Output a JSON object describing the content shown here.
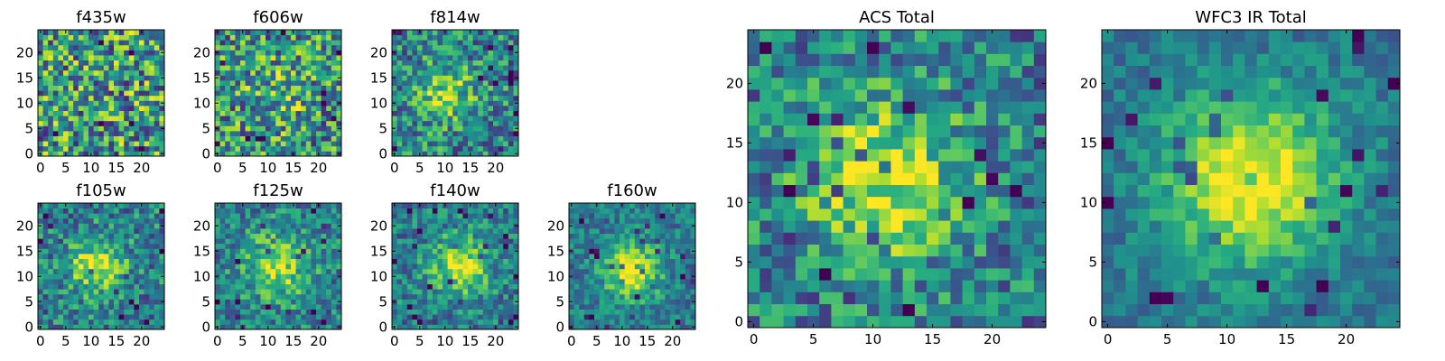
{
  "chart_data": [
    {
      "type": "heatmap",
      "title": "f435w",
      "x_ticks": [
        "0",
        "5",
        "10",
        "15",
        "20"
      ],
      "y_ticks": [
        "0",
        "5",
        "10",
        "15",
        "20"
      ],
      "xlim": [
        -0.5,
        24.5
      ],
      "ylim": [
        -0.5,
        24.5
      ],
      "grid_size": 25,
      "peak": "none (noise)",
      "colormap": "viridis"
    },
    {
      "type": "heatmap",
      "title": "f606w",
      "x_ticks": [
        "0",
        "5",
        "10",
        "15",
        "20"
      ],
      "y_ticks": [
        "0",
        "5",
        "10",
        "15",
        "20"
      ],
      "xlim": [
        -0.5,
        24.5
      ],
      "ylim": [
        -0.5,
        24.5
      ],
      "grid_size": 25,
      "peak": "weak center",
      "colormap": "viridis"
    },
    {
      "type": "heatmap",
      "title": "f814w",
      "x_ticks": [
        "0",
        "5",
        "10",
        "15",
        "20"
      ],
      "y_ticks": [
        "0",
        "5",
        "10",
        "15",
        "20"
      ],
      "xlim": [
        -0.5,
        24.5
      ],
      "ylim": [
        -0.5,
        24.5
      ],
      "grid_size": 25,
      "peak": "center ~ (10,12)",
      "colormap": "viridis"
    },
    {
      "type": "heatmap",
      "title": "f105w",
      "x_ticks": [
        "0",
        "5",
        "10",
        "15",
        "20"
      ],
      "y_ticks": [
        "0",
        "5",
        "10",
        "15",
        "20"
      ],
      "xlim": [
        -0.5,
        24.5
      ],
      "ylim": [
        -0.5,
        24.5
      ],
      "grid_size": 25,
      "peak": "center ~ (11,12)",
      "colormap": "viridis"
    },
    {
      "type": "heatmap",
      "title": "f125w",
      "x_ticks": [
        "0",
        "5",
        "10",
        "15",
        "20"
      ],
      "y_ticks": [
        "0",
        "5",
        "10",
        "15",
        "20"
      ],
      "xlim": [
        -0.5,
        24.5
      ],
      "ylim": [
        -0.5,
        24.5
      ],
      "grid_size": 25,
      "peak": "center ~ (12,12)",
      "colormap": "viridis"
    },
    {
      "type": "heatmap",
      "title": "f140w",
      "x_ticks": [
        "0",
        "5",
        "10",
        "15",
        "20"
      ],
      "y_ticks": [
        "0",
        "5",
        "10",
        "15",
        "20"
      ],
      "xlim": [
        -0.5,
        24.5
      ],
      "ylim": [
        -0.5,
        24.5
      ],
      "grid_size": 25,
      "peak": "center ~ (13,12)",
      "colormap": "viridis"
    },
    {
      "type": "heatmap",
      "title": "f160w",
      "x_ticks": [
        "0",
        "5",
        "10",
        "15",
        "20"
      ],
      "y_ticks": [
        "0",
        "5",
        "10",
        "15",
        "20"
      ],
      "xlim": [
        -0.5,
        24.5
      ],
      "ylim": [
        -0.5,
        24.5
      ],
      "grid_size": 25,
      "peak": "center ~ (12,11)",
      "colormap": "viridis"
    },
    {
      "type": "heatmap",
      "title": "ACS Total",
      "x_ticks": [
        "0",
        "5",
        "10",
        "15",
        "20"
      ],
      "y_ticks": [
        "0",
        "5",
        "10",
        "15",
        "20"
      ],
      "xlim": [
        -0.5,
        24.5
      ],
      "ylim": [
        -0.5,
        24.5
      ],
      "grid_size": 25,
      "peak": "center ~ (11,12)",
      "colormap": "viridis"
    },
    {
      "type": "heatmap",
      "title": "WFC3 IR Total",
      "x_ticks": [
        "0",
        "5",
        "10",
        "15",
        "20"
      ],
      "y_ticks": [
        "0",
        "5",
        "10",
        "15",
        "20"
      ],
      "xlim": [
        -0.5,
        24.5
      ],
      "ylim": [
        -0.5,
        24.5
      ],
      "grid_size": 25,
      "peak": "center ~ (12,12)",
      "colormap": "viridis"
    }
  ]
}
